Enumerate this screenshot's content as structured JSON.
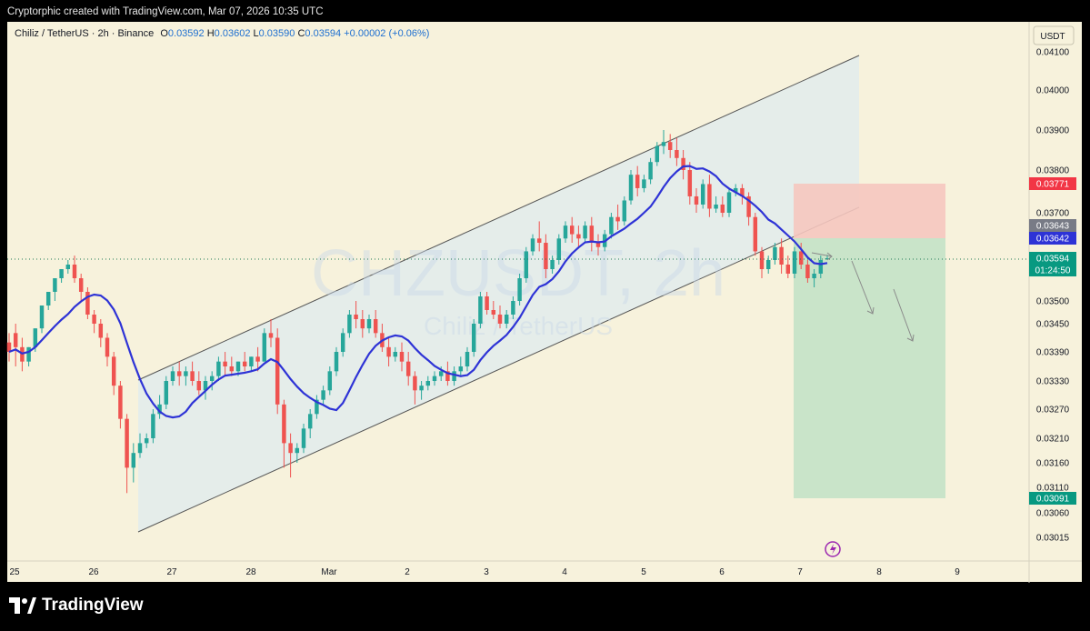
{
  "header": {
    "text": "Cryptorphic created with TradingView.com, Mar 07, 2026 10:35 UTC"
  },
  "legend": {
    "symbol": "Chiliz / TetherUS · 2h · Binance",
    "o_label": "O",
    "o": "0.03592",
    "h_label": "H",
    "h": "0.03602",
    "l_label": "L",
    "l": "0.03590",
    "c_label": "C",
    "c": "0.03594",
    "change": "+0.00002 (+0.06%)"
  },
  "watermark": {
    "line1": "CHZUSDT, 2h",
    "line2": "Chiliz / TetherUS"
  },
  "brand": {
    "name": "TradingView",
    "logo_icon": "tradingview-logo-icon"
  },
  "colors": {
    "up": "#26a69a",
    "down": "#ef5350",
    "ma": "#2e33d6",
    "target": "#089981",
    "stop": "#f23645"
  },
  "chart_data": {
    "type": "candlestick",
    "currency": "USDT",
    "interval": "2h",
    "y_ticks": [
      "0.04100",
      "0.04000",
      "0.03900",
      "0.03800",
      "0.03700",
      "0.03500",
      "0.03450",
      "0.03390",
      "0.03330",
      "0.03270",
      "0.03210",
      "0.03160",
      "0.03110",
      "0.03060",
      "0.03015"
    ],
    "x_ticks": [
      "25",
      "26",
      "27",
      "28",
      "Mar",
      "2",
      "3",
      "4",
      "5",
      "6",
      "7",
      "8",
      "9"
    ],
    "price_tags": [
      {
        "label": "0.03771",
        "role": "stop"
      },
      {
        "label": "0.03643",
        "role": "entry"
      },
      {
        "label": "0.03642",
        "role": "ma"
      },
      {
        "label": "0.03594",
        "role": "last"
      },
      {
        "label": "01:24:50",
        "role": "countdown"
      },
      {
        "label": "0.03091",
        "role": "target"
      }
    ],
    "candles": [
      [
        0.0341,
        0.0343,
        0.0339,
        0.0337
      ],
      [
        0.0343,
        0.0345,
        0.034,
        0.0336
      ],
      [
        0.034,
        0.0342,
        0.0337,
        0.0335
      ],
      [
        0.0337,
        0.0338,
        0.034,
        0.0336
      ],
      [
        0.034,
        0.0343,
        0.0344,
        0.0339
      ],
      [
        0.0344,
        0.0347,
        0.0349,
        0.0343
      ],
      [
        0.0349,
        0.035,
        0.0352,
        0.0348
      ],
      [
        0.0352,
        0.0353,
        0.0355,
        0.035
      ],
      [
        0.0355,
        0.0357,
        0.0357,
        0.0354
      ],
      [
        0.0357,
        0.0359,
        0.0358,
        0.0356
      ],
      [
        0.0358,
        0.036,
        0.0355,
        0.0354
      ],
      [
        0.0355,
        0.0356,
        0.0352,
        0.035
      ],
      [
        0.0352,
        0.0353,
        0.0347,
        0.0346
      ],
      [
        0.0347,
        0.0348,
        0.0345,
        0.0343
      ],
      [
        0.0345,
        0.0346,
        0.0342,
        0.034
      ],
      [
        0.0342,
        0.0343,
        0.0338,
        0.0336
      ],
      [
        0.0338,
        0.0339,
        0.0332,
        0.033
      ],
      [
        0.0332,
        0.0333,
        0.0325,
        0.0323
      ],
      [
        0.0325,
        0.0326,
        0.0315,
        0.031
      ],
      [
        0.0315,
        0.032,
        0.0318,
        0.0312
      ],
      [
        0.0318,
        0.0322,
        0.032,
        0.0317
      ],
      [
        0.032,
        0.0322,
        0.0321,
        0.0319
      ],
      [
        0.0321,
        0.0327,
        0.0326,
        0.032
      ],
      [
        0.0326,
        0.033,
        0.0328,
        0.0325
      ],
      [
        0.0328,
        0.0334,
        0.0333,
        0.0327
      ],
      [
        0.0333,
        0.0336,
        0.0335,
        0.0332
      ],
      [
        0.0335,
        0.0337,
        0.0334,
        0.0332
      ],
      [
        0.0334,
        0.0336,
        0.0335,
        0.0332
      ],
      [
        0.0335,
        0.0337,
        0.0333,
        0.0332
      ],
      [
        0.0333,
        0.0335,
        0.0331,
        0.033
      ],
      [
        0.0331,
        0.0334,
        0.0333,
        0.0329
      ],
      [
        0.0333,
        0.0335,
        0.0334,
        0.0331
      ],
      [
        0.0334,
        0.0338,
        0.0337,
        0.0333
      ],
      [
        0.0337,
        0.0339,
        0.0336,
        0.0334
      ],
      [
        0.0336,
        0.0338,
        0.0335,
        0.0334
      ],
      [
        0.0335,
        0.0337,
        0.0337,
        0.0334
      ],
      [
        0.0337,
        0.0339,
        0.0336,
        0.0335
      ],
      [
        0.0336,
        0.0338,
        0.0338,
        0.0335
      ],
      [
        0.0338,
        0.034,
        0.0337,
        0.0335
      ],
      [
        0.0337,
        0.0344,
        0.0343,
        0.0337
      ],
      [
        0.0343,
        0.0346,
        0.0342,
        0.034
      ],
      [
        0.0342,
        0.0344,
        0.0328,
        0.0326
      ],
      [
        0.0328,
        0.0329,
        0.032,
        0.0315
      ],
      [
        0.032,
        0.0322,
        0.0318,
        0.0313
      ],
      [
        0.0318,
        0.032,
        0.0319,
        0.0316
      ],
      [
        0.0319,
        0.0324,
        0.0323,
        0.0318
      ],
      [
        0.0323,
        0.0327,
        0.0326,
        0.0321
      ],
      [
        0.0326,
        0.033,
        0.0329,
        0.0325
      ],
      [
        0.0329,
        0.0332,
        0.0331,
        0.0328
      ],
      [
        0.0331,
        0.0336,
        0.0335,
        0.033
      ],
      [
        0.0335,
        0.034,
        0.0339,
        0.0334
      ],
      [
        0.0339,
        0.0344,
        0.0343,
        0.0338
      ],
      [
        0.0343,
        0.0348,
        0.0347,
        0.0342
      ],
      [
        0.0347,
        0.035,
        0.0346,
        0.0344
      ],
      [
        0.0346,
        0.0348,
        0.0344,
        0.0342
      ],
      [
        0.0344,
        0.0347,
        0.0346,
        0.0343
      ],
      [
        0.0346,
        0.0348,
        0.0343,
        0.0342
      ],
      [
        0.0343,
        0.0345,
        0.034,
        0.0339
      ],
      [
        0.034,
        0.0342,
        0.0338,
        0.0336
      ],
      [
        0.0338,
        0.034,
        0.0339,
        0.0337
      ],
      [
        0.0339,
        0.0341,
        0.0337,
        0.0335
      ],
      [
        0.0337,
        0.0339,
        0.0334,
        0.0332
      ],
      [
        0.0334,
        0.0335,
        0.0331,
        0.0328
      ],
      [
        0.0331,
        0.0333,
        0.0332,
        0.0329
      ],
      [
        0.0332,
        0.0334,
        0.0333,
        0.0331
      ],
      [
        0.0333,
        0.0335,
        0.0334,
        0.0332
      ],
      [
        0.0334,
        0.0336,
        0.0335,
        0.0333
      ],
      [
        0.0335,
        0.0337,
        0.0333,
        0.0332
      ],
      [
        0.0333,
        0.0336,
        0.0335,
        0.0332
      ],
      [
        0.0335,
        0.0338,
        0.0336,
        0.0334
      ],
      [
        0.0336,
        0.034,
        0.0339,
        0.0335
      ],
      [
        0.0339,
        0.0346,
        0.0345,
        0.0338
      ],
      [
        0.0345,
        0.0352,
        0.0351,
        0.0344
      ],
      [
        0.0351,
        0.0352,
        0.0348,
        0.0347
      ],
      [
        0.0348,
        0.035,
        0.0347,
        0.0346
      ],
      [
        0.0347,
        0.0349,
        0.0345,
        0.0344
      ],
      [
        0.0345,
        0.0348,
        0.0347,
        0.0344
      ],
      [
        0.0347,
        0.0351,
        0.035,
        0.0346
      ],
      [
        0.035,
        0.0356,
        0.0355,
        0.0349
      ],
      [
        0.0355,
        0.0362,
        0.0361,
        0.0354
      ],
      [
        0.0361,
        0.0365,
        0.0364,
        0.036
      ],
      [
        0.0364,
        0.0368,
        0.0363,
        0.0361
      ],
      [
        0.0363,
        0.0365,
        0.0357,
        0.0355
      ],
      [
        0.0357,
        0.036,
        0.0359,
        0.0356
      ],
      [
        0.0359,
        0.0365,
        0.0364,
        0.0358
      ],
      [
        0.0364,
        0.0368,
        0.0367,
        0.0363
      ],
      [
        0.0367,
        0.0369,
        0.0365,
        0.0363
      ],
      [
        0.0365,
        0.0367,
        0.0364,
        0.0362
      ],
      [
        0.0364,
        0.0368,
        0.0367,
        0.0363
      ],
      [
        0.0367,
        0.0369,
        0.0363,
        0.0361
      ],
      [
        0.0363,
        0.0365,
        0.0362,
        0.036
      ],
      [
        0.0362,
        0.0366,
        0.0365,
        0.0361
      ],
      [
        0.0365,
        0.037,
        0.0369,
        0.0364
      ],
      [
        0.0369,
        0.0372,
        0.0368,
        0.0366
      ],
      [
        0.0368,
        0.0374,
        0.0373,
        0.0367
      ],
      [
        0.0373,
        0.038,
        0.0379,
        0.0372
      ],
      [
        0.0379,
        0.0381,
        0.0376,
        0.0374
      ],
      [
        0.0376,
        0.0379,
        0.0378,
        0.0375
      ],
      [
        0.0378,
        0.0383,
        0.0382,
        0.0377
      ],
      [
        0.0382,
        0.0387,
        0.0386,
        0.0381
      ],
      [
        0.0386,
        0.039,
        0.0387,
        0.0384
      ],
      [
        0.0387,
        0.0389,
        0.0385,
        0.0383
      ],
      [
        0.0385,
        0.0388,
        0.0383,
        0.0381
      ],
      [
        0.0383,
        0.0385,
        0.038,
        0.0378
      ],
      [
        0.038,
        0.0382,
        0.0374,
        0.0372
      ],
      [
        0.0374,
        0.0376,
        0.0372,
        0.037
      ],
      [
        0.0372,
        0.0378,
        0.0377,
        0.0371
      ],
      [
        0.0377,
        0.0379,
        0.0371,
        0.0369
      ],
      [
        0.0371,
        0.0374,
        0.0372,
        0.037
      ],
      [
        0.0372,
        0.0374,
        0.037,
        0.0369
      ],
      [
        0.037,
        0.0376,
        0.0375,
        0.0369
      ],
      [
        0.0375,
        0.0377,
        0.0376,
        0.0374
      ],
      [
        0.0376,
        0.0377,
        0.0374,
        0.0372
      ],
      [
        0.0374,
        0.0375,
        0.0369,
        0.0367
      ],
      [
        0.0369,
        0.037,
        0.0361,
        0.036
      ],
      [
        0.0361,
        0.0362,
        0.0357,
        0.0355
      ],
      [
        0.0357,
        0.036,
        0.0359,
        0.0356
      ],
      [
        0.0359,
        0.0363,
        0.0362,
        0.0358
      ],
      [
        0.0362,
        0.0364,
        0.0358,
        0.0356
      ],
      [
        0.0358,
        0.036,
        0.0356,
        0.0355
      ],
      [
        0.0356,
        0.0362,
        0.0361,
        0.0355
      ],
      [
        0.0361,
        0.0363,
        0.0358,
        0.0357
      ],
      [
        0.0358,
        0.0359,
        0.0355,
        0.0354
      ],
      [
        0.0355,
        0.0357,
        0.0356,
        0.0353
      ],
      [
        0.0356,
        0.036,
        0.0359,
        0.0355
      ],
      [
        0.03592,
        0.03602,
        0.03594,
        0.0359
      ]
    ],
    "moving_average": {
      "line_color": "#2e33d6"
    },
    "channel": {
      "note": "ascending channel"
    },
    "position": {
      "entry": 0.03643,
      "stop": 0.03771,
      "target": 0.03091
    }
  }
}
